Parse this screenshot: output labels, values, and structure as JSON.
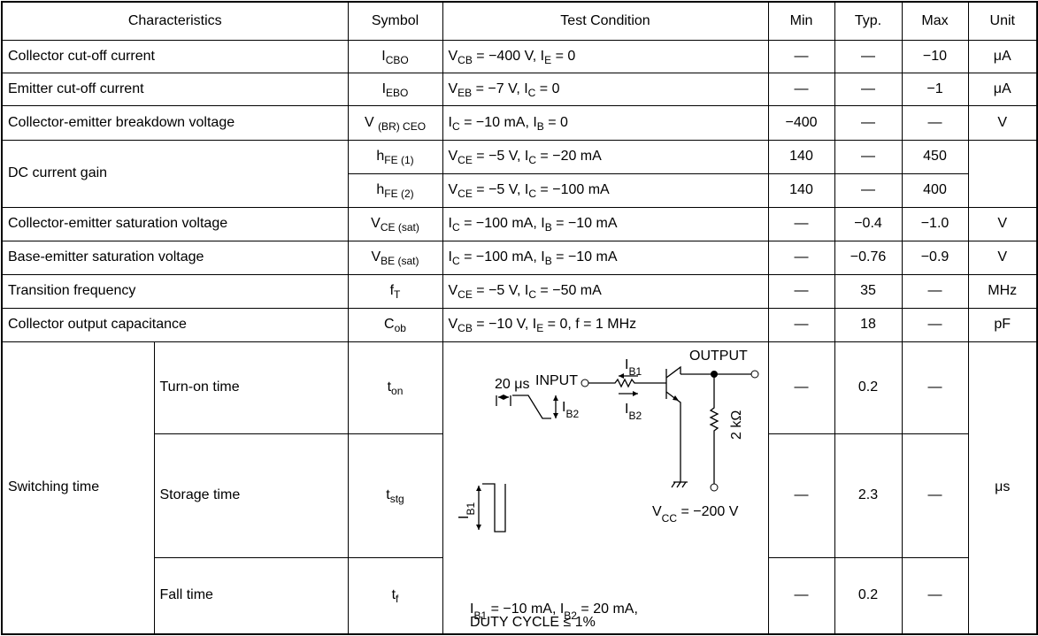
{
  "table": {
    "header": [
      "Characteristics",
      "Symbol",
      "Test Condition",
      "Min",
      "Typ.",
      "Max",
      "Unit"
    ],
    "rows": [
      {
        "characteristic": "Collector cut-off current",
        "symbol": [
          "I",
          {
            "sub": "CBO"
          }
        ],
        "condition": [
          "V",
          {
            "sub": "CB"
          },
          " = −400 V, I",
          {
            "sub": "E"
          },
          " = 0"
        ],
        "min": "—",
        "typ": "—",
        "max": "−10",
        "unit": "μA"
      },
      {
        "characteristic": "Emitter cut-off current",
        "symbol": [
          "I",
          {
            "sub": "EBO"
          }
        ],
        "condition": [
          "V",
          {
            "sub": "EB"
          },
          " = −7 V, I",
          {
            "sub": "C"
          },
          " = 0"
        ],
        "min": "—",
        "typ": "—",
        "max": "−1",
        "unit": "μA"
      },
      {
        "characteristic": "Collector-emitter breakdown voltage",
        "symbol": [
          "V ",
          {
            "sub": "(BR) CEO"
          }
        ],
        "condition": [
          "I",
          {
            "sub": "C"
          },
          " = −10 mA, I",
          {
            "sub": "B"
          },
          " = 0"
        ],
        "min": "−400",
        "typ": "—",
        "max": "—",
        "unit": "V"
      },
      {
        "characteristic": "DC current gain",
        "lines": [
          {
            "symbol": [
              "h",
              {
                "sub": "FE (1)"
              }
            ],
            "condition": [
              "V",
              {
                "sub": "CE"
              },
              " = −5 V, I",
              {
                "sub": "C"
              },
              " = −20 mA"
            ],
            "min": "140",
            "typ": "—",
            "max": "450"
          },
          {
            "symbol": [
              "h",
              {
                "sub": "FE (2)"
              }
            ],
            "condition": [
              "V",
              {
                "sub": "CE"
              },
              " = −5 V, I",
              {
                "sub": "C"
              },
              " = −100 mA"
            ],
            "min": "140",
            "typ": "—",
            "max": "400"
          }
        ]
      },
      {
        "characteristic": "Collector-emitter saturation voltage",
        "symbol": [
          "V",
          {
            "sub": "CE (sat)"
          }
        ],
        "condition": [
          "I",
          {
            "sub": "C"
          },
          " = −100 mA, I",
          {
            "sub": "B"
          },
          " = −10 mA"
        ],
        "min": "—",
        "typ": "−0.4",
        "max": "−1.0",
        "unit": "V"
      },
      {
        "characteristic": "Base-emitter saturation voltage",
        "symbol": [
          "V",
          {
            "sub": "BE (sat)"
          }
        ],
        "condition": [
          "I",
          {
            "sub": "C"
          },
          " = −100 mA, I",
          {
            "sub": "B"
          },
          " = −10 mA"
        ],
        "min": "—",
        "typ": "−0.76",
        "max": "−0.9",
        "unit": "V"
      },
      {
        "characteristic": "Transition frequency",
        "symbol": [
          "f",
          {
            "sub": "T"
          }
        ],
        "condition": [
          "V",
          {
            "sub": "CE"
          },
          " = −5 V, I",
          {
            "sub": "C"
          },
          " = −50 mA"
        ],
        "min": "—",
        "typ": "35",
        "max": "—",
        "unit": "MHz"
      },
      {
        "characteristic": "Collector output capacitance",
        "symbol": [
          "C",
          {
            "sub": "ob"
          }
        ],
        "condition": [
          "V",
          {
            "sub": "CB"
          },
          " = −10 V, I",
          {
            "sub": "E"
          },
          " = 0, f = 1 MHz"
        ],
        "min": "—",
        "typ": "18",
        "max": "—",
        "unit": "pF"
      }
    ],
    "switching": {
      "characteristic": "Switching time",
      "unit": "μs",
      "rows": [
        {
          "name": "Turn-on time",
          "symbol": [
            "t",
            {
              "sub": "on"
            }
          ],
          "min": "—",
          "typ": "0.2",
          "max": "—"
        },
        {
          "name": "Storage time",
          "symbol": [
            "t",
            {
              "sub": "stg"
            }
          ],
          "min": "—",
          "typ": "2.3",
          "max": "—"
        },
        {
          "name": "Fall time",
          "symbol": [
            "t",
            {
              "sub": "f"
            }
          ],
          "min": "—",
          "typ": "0.2",
          "max": "—"
        }
      ],
      "circuit": {
        "pulse_width": "20 μs",
        "input": "INPUT",
        "output": "OUTPUT",
        "resistor": "2 kΩ",
        "ib1_in": [
          "I",
          {
            "sub": "B1"
          }
        ],
        "ib2_in": [
          "I",
          {
            "sub": "B2"
          }
        ],
        "ib2_pulse": [
          "I",
          {
            "sub": "B2"
          }
        ],
        "ib1_pulse": [
          "I",
          {
            "sub": "B1"
          }
        ],
        "supply": [
          "V",
          {
            "sub": "CC"
          },
          " = −200 V"
        ]
      },
      "condition": [
        [
          "I",
          {
            "sub": "B1"
          },
          " = −10 mA, I",
          {
            "sub": "B2"
          },
          " = 20 mA,"
        ],
        [
          "DUTY CYCLE ≤ 1%"
        ]
      ]
    }
  }
}
